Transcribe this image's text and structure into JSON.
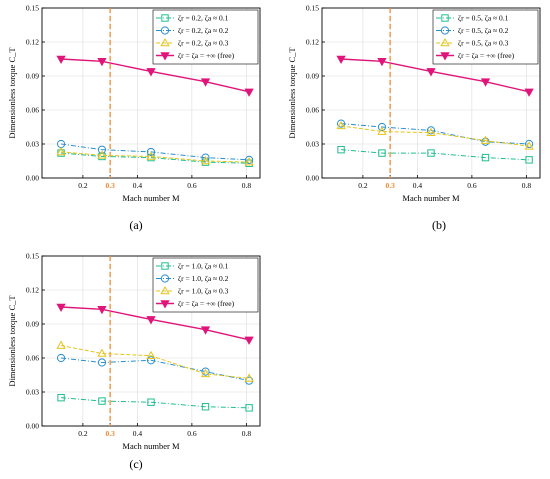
{
  "chart_data": [
    {
      "panel": "(a)",
      "type": "line",
      "xlabel": "Mach number M",
      "ylabel": "Dimensionless torque C_T",
      "xlim": [
        0.05,
        0.85
      ],
      "ylim": [
        0,
        0.15
      ],
      "xticks": [
        "0.2",
        "0.3",
        "0.4",
        "0.6",
        "0.8"
      ],
      "xtick_values": [
        0.2,
        0.3,
        0.4,
        0.6,
        0.8
      ],
      "highlight_xtick": "0.3",
      "yticks": [
        "0.00",
        "0.03",
        "0.06",
        "0.09",
        "0.12",
        "0.15"
      ],
      "ytick_values": [
        0,
        0.03,
        0.06,
        0.09,
        0.12,
        0.15
      ],
      "vline_x": 0.3,
      "grid": true,
      "legend_position": "top-right",
      "x": [
        0.12,
        0.27,
        0.45,
        0.65,
        0.81
      ],
      "series": [
        {
          "name": "ζr = 0.2, ζa ≈ 0.1",
          "marker": "square",
          "color": "#1fbf8f",
          "dash": "dashdot",
          "values": [
            0.022,
            0.019,
            0.018,
            0.014,
            0.013
          ]
        },
        {
          "name": "ζr = 0.2, ζa ≈ 0.2",
          "marker": "circle",
          "color": "#2a8fd0",
          "dash": "dashdot",
          "values": [
            0.03,
            0.025,
            0.023,
            0.018,
            0.016
          ]
        },
        {
          "name": "ζr = 0.2, ζa ≈ 0.3",
          "marker": "triangle",
          "color": "#e6c41a",
          "dash": "dashed",
          "values": [
            0.023,
            0.02,
            0.019,
            0.015,
            0.014
          ]
        },
        {
          "name": "ζr = ζa = +∞ (free)",
          "marker": "triangle-down",
          "color": "#e0157a",
          "dash": "solid",
          "values": [
            0.105,
            0.103,
            0.094,
            0.085,
            0.076
          ]
        }
      ]
    },
    {
      "panel": "(b)",
      "type": "line",
      "xlabel": "Mach number M",
      "ylabel": "Dimensionless torque C_T",
      "xlim": [
        0.05,
        0.85
      ],
      "ylim": [
        0,
        0.15
      ],
      "xticks": [
        "0.2",
        "0.3",
        "0.4",
        "0.6",
        "0.8"
      ],
      "xtick_values": [
        0.2,
        0.3,
        0.4,
        0.6,
        0.8
      ],
      "highlight_xtick": "0.3",
      "yticks": [
        "0.00",
        "0.03",
        "0.06",
        "0.09",
        "0.12",
        "0.15"
      ],
      "ytick_values": [
        0,
        0.03,
        0.06,
        0.09,
        0.12,
        0.15
      ],
      "vline_x": 0.3,
      "grid": true,
      "legend_position": "top-right",
      "x": [
        0.12,
        0.27,
        0.45,
        0.65,
        0.81
      ],
      "series": [
        {
          "name": "ζr = 0.5, ζa ≈ 0.1",
          "marker": "square",
          "color": "#1fbf8f",
          "dash": "dashdot",
          "values": [
            0.025,
            0.022,
            0.022,
            0.018,
            0.016
          ]
        },
        {
          "name": "ζr = 0.5, ζa ≈ 0.2",
          "marker": "circle",
          "color": "#2a8fd0",
          "dash": "dashdot",
          "values": [
            0.048,
            0.045,
            0.042,
            0.032,
            0.03
          ]
        },
        {
          "name": "ζr = 0.5, ζa ≈ 0.3",
          "marker": "triangle",
          "color": "#e6c41a",
          "dash": "dashed",
          "values": [
            0.046,
            0.041,
            0.04,
            0.033,
            0.028
          ]
        },
        {
          "name": "ζr = ζa = +∞ (free)",
          "marker": "triangle-down",
          "color": "#e0157a",
          "dash": "solid",
          "values": [
            0.105,
            0.103,
            0.094,
            0.085,
            0.076
          ]
        }
      ]
    },
    {
      "panel": "(c)",
      "type": "line",
      "xlabel": "Mach number M",
      "ylabel": "Dimensionless torque C_T",
      "xlim": [
        0.05,
        0.85
      ],
      "ylim": [
        0,
        0.15
      ],
      "xticks": [
        "0.2",
        "0.3",
        "0.4",
        "0.6",
        "0.8"
      ],
      "xtick_values": [
        0.2,
        0.3,
        0.4,
        0.6,
        0.8
      ],
      "highlight_xtick": "0.3",
      "yticks": [
        "0.00",
        "0.03",
        "0.06",
        "0.09",
        "0.12",
        "0.15"
      ],
      "ytick_values": [
        0,
        0.03,
        0.06,
        0.09,
        0.12,
        0.15
      ],
      "vline_x": 0.3,
      "grid": true,
      "legend_position": "top-right",
      "x": [
        0.12,
        0.27,
        0.45,
        0.65,
        0.81
      ],
      "series": [
        {
          "name": "ζr = 1.0, ζa ≈ 0.1",
          "marker": "square",
          "color": "#1fbf8f",
          "dash": "dashdot",
          "values": [
            0.025,
            0.022,
            0.021,
            0.017,
            0.016
          ]
        },
        {
          "name": "ζr = 1.0, ζa ≈ 0.2",
          "marker": "circle",
          "color": "#2a8fd0",
          "dash": "dashdot",
          "values": [
            0.06,
            0.056,
            0.058,
            0.048,
            0.04
          ]
        },
        {
          "name": "ζr = 1.0, ζa ≈ 0.3",
          "marker": "triangle",
          "color": "#e6c41a",
          "dash": "dashed",
          "values": [
            0.071,
            0.064,
            0.062,
            0.046,
            0.042
          ]
        },
        {
          "name": "ζr = ζa = +∞ (free)",
          "marker": "triangle-down",
          "color": "#e0157a",
          "dash": "solid",
          "values": [
            0.105,
            0.103,
            0.094,
            0.085,
            0.076
          ]
        }
      ]
    }
  ],
  "colors": {
    "highlight": "#f28a2e",
    "grid": "#dddddd"
  }
}
